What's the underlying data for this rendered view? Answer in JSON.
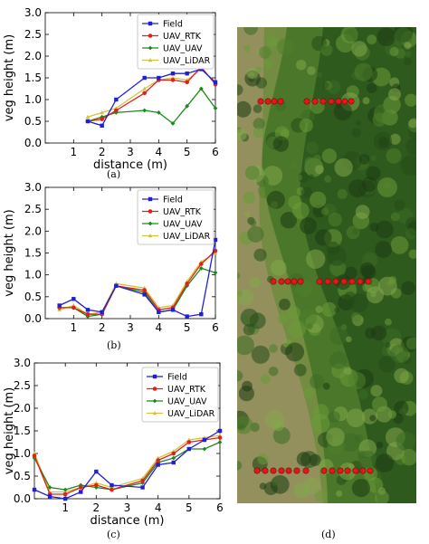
{
  "figure": {
    "panel_a_label": "(a)",
    "panel_b_label": "(b)",
    "panel_c_label": "(c)",
    "panel_d_label": "(d)"
  },
  "colors": {
    "Field": "#1f1fd6",
    "UAV_RTK": "#e0201a",
    "UAV_UAV": "#1a8a1a",
    "UAV_LiDAR": "#d6c23a",
    "vegetation_dark": "#2f5a1e",
    "vegetation_mid": "#5d8a30",
    "soil": "#a59a68",
    "marker": "#e01818"
  },
  "chart_data": [
    {
      "type": "line",
      "xlabel": "distance (m)",
      "ylabel": "veg height (m)",
      "xlim": [
        0,
        6
      ],
      "ylim": [
        0,
        3.0
      ],
      "xticks": [
        "1",
        "2",
        "3",
        "4",
        "5",
        "6"
      ],
      "yticks": [
        "0.0",
        "0.5",
        "1.0",
        "1.5",
        "2.0",
        "2.5",
        "3.0"
      ],
      "legend_position": "top-right",
      "series": [
        {
          "name": "Field",
          "x": [
            1.5,
            2.0,
            2.5,
            3.5,
            4.0,
            4.5,
            5.0,
            5.5,
            6.0
          ],
          "y": [
            0.5,
            0.4,
            1.0,
            1.5,
            1.5,
            1.6,
            1.6,
            1.7,
            1.4
          ]
        },
        {
          "name": "UAV_RTK",
          "x": [
            1.5,
            2.0,
            2.5,
            3.5,
            4.0,
            4.5,
            5.0,
            5.5,
            6.0
          ],
          "y": [
            0.5,
            0.55,
            0.75,
            1.15,
            1.45,
            1.45,
            1.4,
            1.75,
            1.35
          ]
        },
        {
          "name": "UAV_UAV",
          "x": [
            1.5,
            2.0,
            2.5,
            3.5,
            4.0,
            4.5,
            5.0,
            5.5,
            6.0
          ],
          "y": [
            0.5,
            0.6,
            0.7,
            0.75,
            0.7,
            0.45,
            0.85,
            1.25,
            0.8
          ]
        },
        {
          "name": "UAV_LiDAR",
          "x": [
            1.5,
            2.0,
            2.5,
            3.5,
            4.0,
            4.5,
            5.0,
            5.5,
            6.0
          ],
          "y": [
            0.6,
            0.7,
            0.8,
            1.25,
            1.45,
            1.5,
            1.45,
            1.7,
            1.4
          ]
        }
      ]
    },
    {
      "type": "line",
      "xlabel": "",
      "ylabel": "veg height (m)",
      "xlim": [
        0,
        6
      ],
      "ylim": [
        0,
        3.0
      ],
      "xticks": [
        "1",
        "2",
        "3",
        "4",
        "5",
        "6"
      ],
      "yticks": [
        "0.0",
        "0.5",
        "1.0",
        "1.5",
        "2.0",
        "2.5",
        "3.0"
      ],
      "legend_position": "top-right",
      "series": [
        {
          "name": "Field",
          "x": [
            0.5,
            1.0,
            1.5,
            2.0,
            2.5,
            3.5,
            4.0,
            4.5,
            5.0,
            5.5,
            6.0
          ],
          "y": [
            0.3,
            0.45,
            0.2,
            0.15,
            0.75,
            0.55,
            0.15,
            0.2,
            0.05,
            0.1,
            1.8
          ]
        },
        {
          "name": "UAV_RTK",
          "x": [
            0.5,
            1.0,
            1.5,
            2.0,
            2.5,
            3.5,
            4.0,
            4.5,
            5.0,
            5.5,
            6.0
          ],
          "y": [
            0.25,
            0.25,
            0.1,
            0.1,
            0.75,
            0.65,
            0.2,
            0.25,
            0.8,
            1.25,
            1.55
          ]
        },
        {
          "name": "UAV_UAV",
          "x": [
            0.5,
            1.0,
            1.5,
            2.0,
            2.5,
            3.5,
            4.0,
            4.5,
            5.0,
            5.5,
            6.0
          ],
          "y": [
            0.25,
            0.25,
            0.05,
            0.1,
            0.75,
            0.6,
            0.15,
            0.2,
            0.75,
            1.15,
            1.05
          ]
        },
        {
          "name": "UAV_LiDAR",
          "x": [
            0.5,
            1.0,
            1.5,
            2.0,
            2.5,
            3.5,
            4.0,
            4.5,
            5.0,
            5.5,
            6.0
          ],
          "y": [
            0.2,
            0.3,
            0.1,
            0.15,
            0.8,
            0.7,
            0.25,
            0.3,
            0.85,
            1.3,
            1.5
          ]
        }
      ]
    },
    {
      "type": "line",
      "xlabel": "distance (m)",
      "ylabel": "veg height (m)",
      "xlim": [
        0,
        6
      ],
      "ylim": [
        0,
        3.0
      ],
      "xticks": [
        "1",
        "2",
        "3",
        "4",
        "5",
        "6"
      ],
      "yticks": [
        "0.0",
        "0.5",
        "1.0",
        "1.5",
        "2.0",
        "2.5",
        "3.0"
      ],
      "legend_position": "top-right",
      "series": [
        {
          "name": "Field",
          "x": [
            0.0,
            0.5,
            1.0,
            1.5,
            2.0,
            2.5,
            3.5,
            4.0,
            4.5,
            5.0,
            5.5,
            6.0
          ],
          "y": [
            0.2,
            0.05,
            0.0,
            0.15,
            0.6,
            0.3,
            0.25,
            0.75,
            0.8,
            1.1,
            1.3,
            1.5
          ]
        },
        {
          "name": "UAV_RTK",
          "x": [
            0.0,
            0.5,
            1.0,
            1.5,
            2.0,
            2.5,
            3.5,
            4.0,
            4.5,
            5.0,
            5.5,
            6.0
          ],
          "y": [
            0.95,
            0.1,
            0.1,
            0.25,
            0.3,
            0.2,
            0.4,
            0.85,
            1.0,
            1.25,
            1.3,
            1.35
          ]
        },
        {
          "name": "UAV_UAV",
          "x": [
            0.0,
            0.5,
            1.0,
            1.5,
            2.0,
            2.5,
            3.5,
            4.0,
            4.5,
            5.0,
            5.5,
            6.0
          ],
          "y": [
            0.9,
            0.25,
            0.2,
            0.3,
            0.25,
            0.2,
            0.35,
            0.8,
            0.9,
            1.1,
            1.1,
            1.25
          ]
        },
        {
          "name": "UAV_LiDAR",
          "x": [
            0.0,
            0.5,
            1.0,
            1.5,
            2.0,
            2.5,
            3.5,
            4.0,
            4.5,
            5.0,
            5.5,
            6.0
          ],
          "y": [
            1.0,
            0.15,
            0.15,
            0.25,
            0.35,
            0.25,
            0.45,
            0.9,
            1.05,
            1.3,
            1.35,
            1.4
          ]
        }
      ]
    }
  ]
}
